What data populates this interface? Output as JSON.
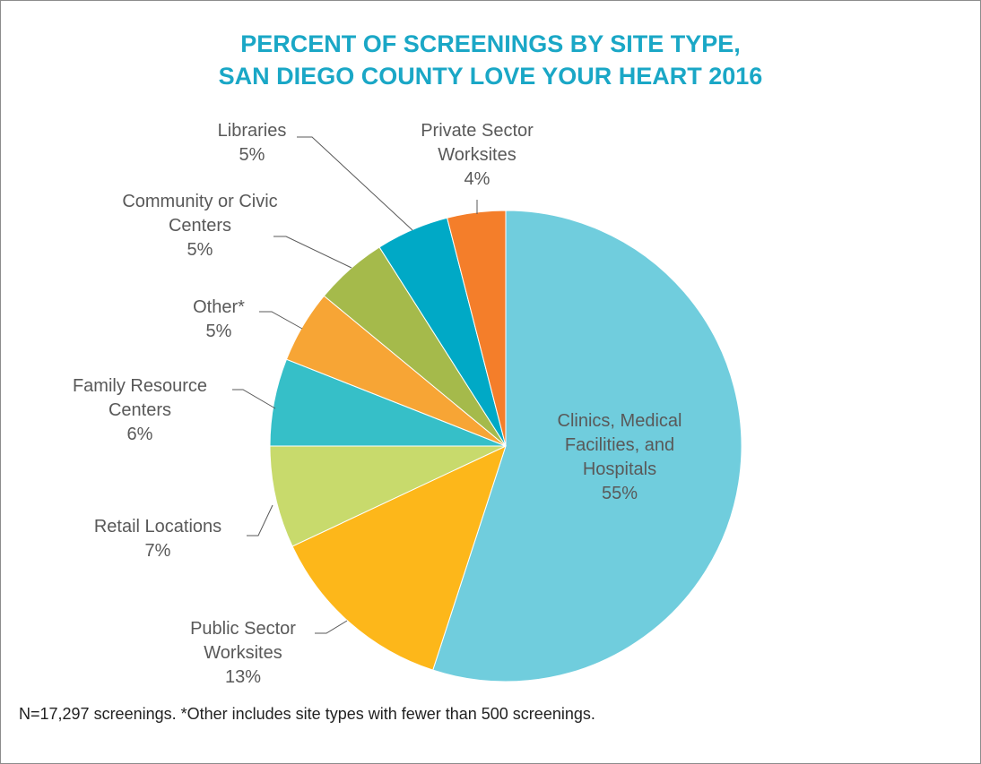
{
  "chart_data": {
    "type": "pie",
    "title": "PERCENT OF SCREENINGS BY SITE TYPE,\nSAN DIEGO COUNTY LOVE YOUR HEART 2016",
    "categories": [
      "Clinics, Medical Facilities, and Hospitals",
      "Public Sector Worksites",
      "Retail Locations",
      "Family Resource Centers",
      "Other*",
      "Community or Civic Centers",
      "Libraries",
      "Private Sector Worksites"
    ],
    "values": [
      55,
      13,
      7,
      6,
      5,
      5,
      5,
      4
    ],
    "value_labels": [
      "55%",
      "13%",
      "7%",
      "6%",
      "5%",
      "5%",
      "5%",
      "4%"
    ],
    "colors": [
      "#70cddd",
      "#fdb71a",
      "#c8da6c",
      "#36bfc8",
      "#f7a535",
      "#a5ba4b",
      "#00a9c6",
      "#f47e2a"
    ],
    "note": "N=17,297 screenings. *Other includes site types with fewer than 500 screenings."
  }
}
